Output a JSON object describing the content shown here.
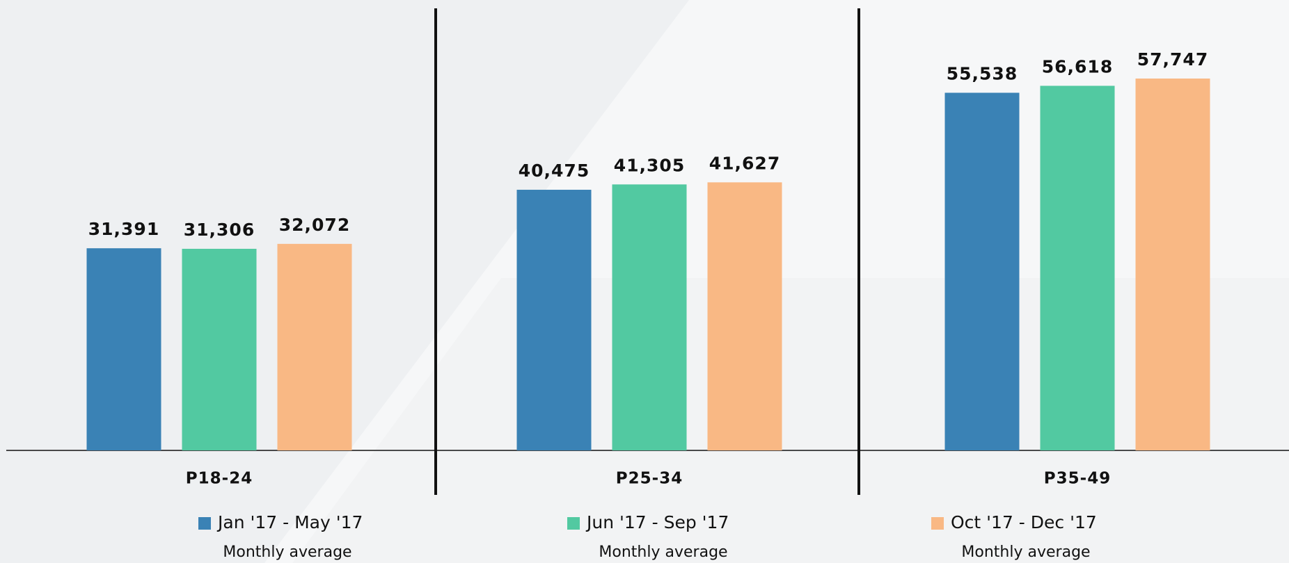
{
  "chart_data": {
    "type": "bar",
    "categories": [
      "P18-24",
      "P25-34",
      "P35-49"
    ],
    "series": [
      {
        "name": "Jan '17 - May '17",
        "subtitle": "Monthly average",
        "color": "#3a82b5",
        "values": [
          31391,
          40475,
          55538
        ],
        "value_labels": [
          "31,391",
          "40,475",
          "55,538"
        ]
      },
      {
        "name": "Jun '17 - Sep '17",
        "subtitle": "Monthly average",
        "color": "#52c9a1",
        "values": [
          31306,
          41305,
          56618
        ],
        "value_labels": [
          "31,306",
          "41,305",
          "56,618"
        ]
      },
      {
        "name": "Oct '17 - Dec '17",
        "subtitle": "Monthly average",
        "color": "#f9b884",
        "values": [
          32072,
          41627,
          57747
        ],
        "value_labels": [
          "32,072",
          "41,627",
          "57,747"
        ]
      }
    ]
  }
}
